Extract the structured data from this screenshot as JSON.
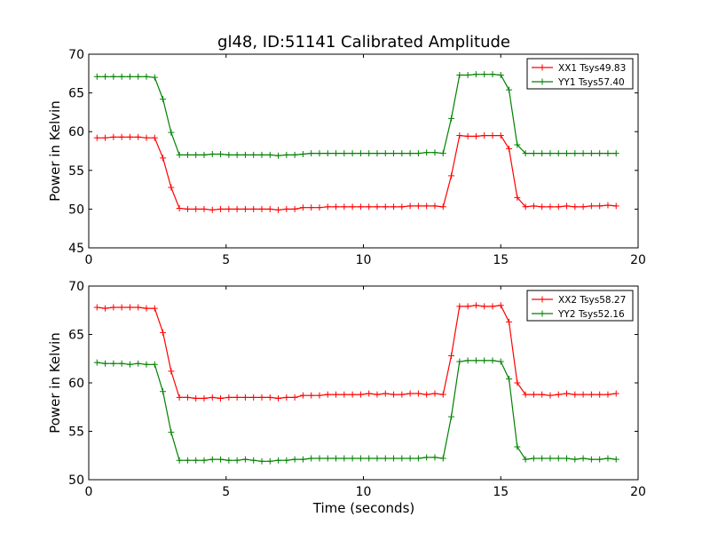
{
  "figure": {
    "title": "gl48, ID:51141 Calibrated Amplitude",
    "xlabel": "Time (seconds)"
  },
  "chart_data": [
    {
      "type": "line",
      "title": "gl48, ID:51141 Calibrated Amplitude",
      "xlabel": "",
      "ylabel": "Power in Kelvin",
      "xlim": [
        0,
        20
      ],
      "ylim": [
        45,
        70
      ],
      "xticks": [
        0,
        5,
        10,
        15,
        20
      ],
      "yticks": [
        45,
        50,
        55,
        60,
        65,
        70
      ],
      "grid": false,
      "legend_position": "top-right",
      "x": [
        0.3,
        0.6,
        0.9,
        1.2,
        1.5,
        1.8,
        2.1,
        2.4,
        2.7,
        3.0,
        3.3,
        3.6,
        3.9,
        4.2,
        4.5,
        4.8,
        5.1,
        5.4,
        5.7,
        6.0,
        6.3,
        6.6,
        6.9,
        7.2,
        7.5,
        7.8,
        8.1,
        8.4,
        8.7,
        9.0,
        9.3,
        9.6,
        9.9,
        10.2,
        10.5,
        10.8,
        11.1,
        11.4,
        11.7,
        12.0,
        12.3,
        12.6,
        12.9,
        13.2,
        13.5,
        13.8,
        14.1,
        14.4,
        14.7,
        15.0,
        15.3,
        15.6,
        15.9,
        16.2,
        16.5,
        16.8,
        17.1,
        17.4,
        17.7,
        18.0,
        18.3,
        18.6,
        18.9,
        19.2
      ],
      "series": [
        {
          "name": "XX1 Tsys49.83",
          "color": "#ff0000",
          "values": [
            59.2,
            59.2,
            59.3,
            59.3,
            59.3,
            59.3,
            59.2,
            59.2,
            56.6,
            52.8,
            50.1,
            50.0,
            50.0,
            50.0,
            49.9,
            50.0,
            50.0,
            50.0,
            50.0,
            50.0,
            50.0,
            50.0,
            49.9,
            50.0,
            50.0,
            50.2,
            50.2,
            50.2,
            50.3,
            50.3,
            50.3,
            50.3,
            50.3,
            50.3,
            50.3,
            50.3,
            50.3,
            50.3,
            50.4,
            50.4,
            50.4,
            50.4,
            50.3,
            54.3,
            59.5,
            59.4,
            59.4,
            59.5,
            59.5,
            59.5,
            57.8,
            51.5,
            50.3,
            50.4,
            50.3,
            50.3,
            50.3,
            50.4,
            50.3,
            50.3,
            50.4,
            50.4,
            50.5,
            50.4
          ]
        },
        {
          "name": "YY1 Tsys57.40",
          "color": "#008000",
          "values": [
            67.1,
            67.1,
            67.1,
            67.1,
            67.1,
            67.1,
            67.1,
            67.0,
            64.2,
            59.9,
            57.0,
            57.0,
            57.0,
            57.0,
            57.1,
            57.1,
            57.0,
            57.0,
            57.0,
            57.0,
            57.0,
            57.0,
            56.9,
            57.0,
            57.0,
            57.1,
            57.2,
            57.2,
            57.2,
            57.2,
            57.2,
            57.2,
            57.2,
            57.2,
            57.2,
            57.2,
            57.2,
            57.2,
            57.2,
            57.2,
            57.3,
            57.3,
            57.2,
            61.7,
            67.3,
            67.3,
            67.4,
            67.4,
            67.4,
            67.3,
            65.4,
            58.3,
            57.2,
            57.2,
            57.2,
            57.2,
            57.2,
            57.2,
            57.2,
            57.2,
            57.2,
            57.2,
            57.2,
            57.2
          ]
        }
      ]
    },
    {
      "type": "line",
      "title": "",
      "xlabel": "Time (seconds)",
      "ylabel": "Power in Kelvin",
      "xlim": [
        0,
        20
      ],
      "ylim": [
        50,
        70
      ],
      "xticks": [
        0,
        5,
        10,
        15,
        20
      ],
      "yticks": [
        50,
        55,
        60,
        65,
        70
      ],
      "grid": false,
      "legend_position": "top-right",
      "x": [
        0.3,
        0.6,
        0.9,
        1.2,
        1.5,
        1.8,
        2.1,
        2.4,
        2.7,
        3.0,
        3.3,
        3.6,
        3.9,
        4.2,
        4.5,
        4.8,
        5.1,
        5.4,
        5.7,
        6.0,
        6.3,
        6.6,
        6.9,
        7.2,
        7.5,
        7.8,
        8.1,
        8.4,
        8.7,
        9.0,
        9.3,
        9.6,
        9.9,
        10.2,
        10.5,
        10.8,
        11.1,
        11.4,
        11.7,
        12.0,
        12.3,
        12.6,
        12.9,
        13.2,
        13.5,
        13.8,
        14.1,
        14.4,
        14.7,
        15.0,
        15.3,
        15.6,
        15.9,
        16.2,
        16.5,
        16.8,
        17.1,
        17.4,
        17.7,
        18.0,
        18.3,
        18.6,
        18.9,
        19.2
      ],
      "series": [
        {
          "name": "XX2 Tsys58.27",
          "color": "#ff0000",
          "values": [
            67.8,
            67.7,
            67.8,
            67.8,
            67.8,
            67.8,
            67.7,
            67.7,
            65.2,
            61.2,
            58.5,
            58.5,
            58.4,
            58.4,
            58.5,
            58.4,
            58.5,
            58.5,
            58.5,
            58.5,
            58.5,
            58.5,
            58.4,
            58.5,
            58.5,
            58.7,
            58.7,
            58.7,
            58.8,
            58.8,
            58.8,
            58.8,
            58.8,
            58.9,
            58.8,
            58.9,
            58.8,
            58.8,
            58.9,
            58.9,
            58.8,
            58.9,
            58.8,
            62.8,
            67.9,
            67.9,
            68.0,
            67.9,
            67.9,
            68.0,
            66.3,
            60.0,
            58.8,
            58.8,
            58.8,
            58.7,
            58.8,
            58.9,
            58.8,
            58.8,
            58.8,
            58.8,
            58.8,
            58.9
          ]
        },
        {
          "name": "YY2 Tsys52.16",
          "color": "#008000",
          "values": [
            62.1,
            62.0,
            62.0,
            62.0,
            61.9,
            62.0,
            61.9,
            61.9,
            59.1,
            54.9,
            52.0,
            52.0,
            52.0,
            52.0,
            52.1,
            52.1,
            52.0,
            52.0,
            52.1,
            52.0,
            51.9,
            51.9,
            52.0,
            52.0,
            52.1,
            52.1,
            52.2,
            52.2,
            52.2,
            52.2,
            52.2,
            52.2,
            52.2,
            52.2,
            52.2,
            52.2,
            52.2,
            52.2,
            52.2,
            52.2,
            52.3,
            52.3,
            52.2,
            56.5,
            62.2,
            62.3,
            62.3,
            62.3,
            62.3,
            62.2,
            60.4,
            53.4,
            52.1,
            52.2,
            52.2,
            52.2,
            52.2,
            52.2,
            52.1,
            52.2,
            52.1,
            52.1,
            52.2,
            52.1
          ]
        }
      ]
    }
  ]
}
